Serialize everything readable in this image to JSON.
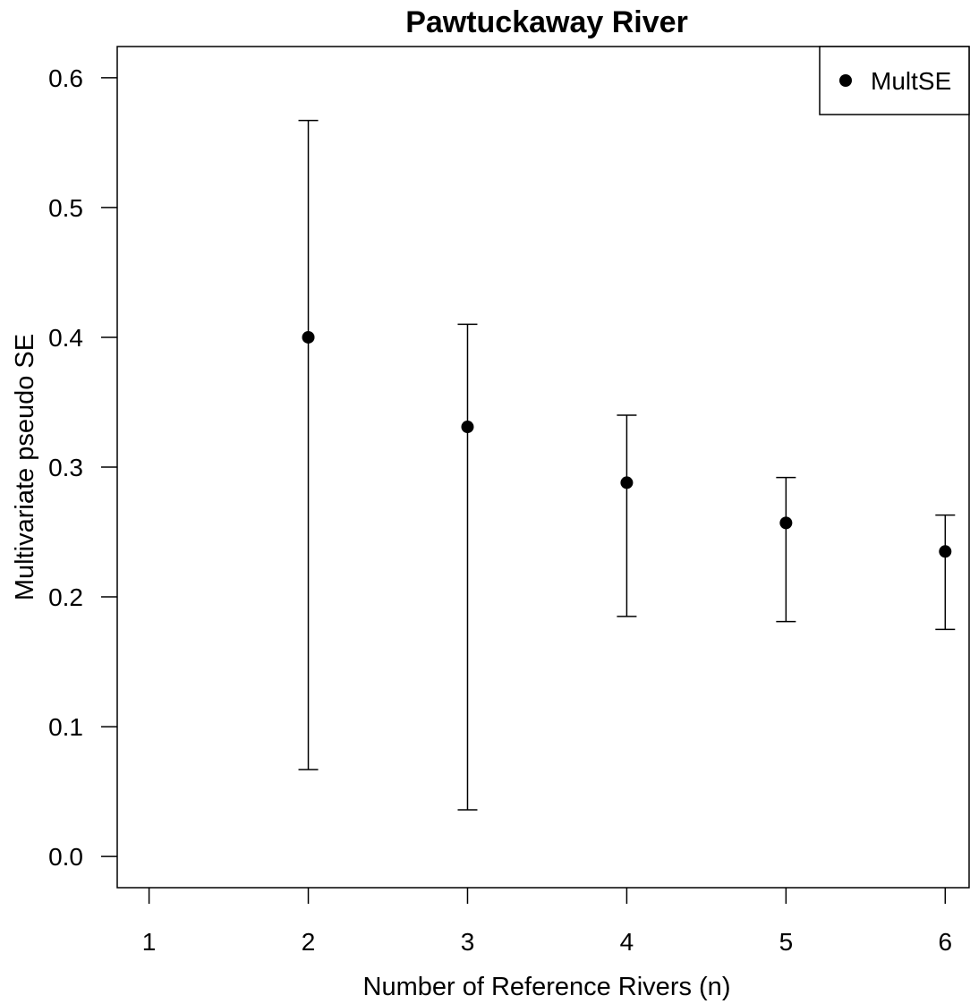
{
  "chart_data": {
    "type": "scatter",
    "title": "Pawtuckaway River",
    "xlabel": "Number of Reference Rivers (n)",
    "ylabel": "Multivariate pseudo SE",
    "xlim": [
      0.8,
      6.15
    ],
    "ylim": [
      -0.024,
      0.624
    ],
    "x_ticks": [
      1,
      2,
      3,
      4,
      5,
      6
    ],
    "y_ticks": [
      0.0,
      0.1,
      0.2,
      0.3,
      0.4,
      0.5,
      0.6
    ],
    "y_tick_labels": [
      "0.0",
      "0.1",
      "0.2",
      "0.3",
      "0.4",
      "0.5",
      "0.6"
    ],
    "grid": false,
    "legend": {
      "position": "top-right",
      "entries": [
        "MultSE"
      ]
    },
    "series": [
      {
        "name": "MultSE",
        "color": "#000000",
        "marker": "filled-circle",
        "points": [
          {
            "x": 2,
            "y": 0.4,
            "lower": 0.067,
            "upper": 0.567
          },
          {
            "x": 3,
            "y": 0.331,
            "lower": 0.036,
            "upper": 0.41
          },
          {
            "x": 4,
            "y": 0.288,
            "lower": 0.185,
            "upper": 0.34
          },
          {
            "x": 5,
            "y": 0.257,
            "lower": 0.181,
            "upper": 0.292
          },
          {
            "x": 6,
            "y": 0.235,
            "lower": 0.175,
            "upper": 0.263
          }
        ]
      }
    ]
  }
}
